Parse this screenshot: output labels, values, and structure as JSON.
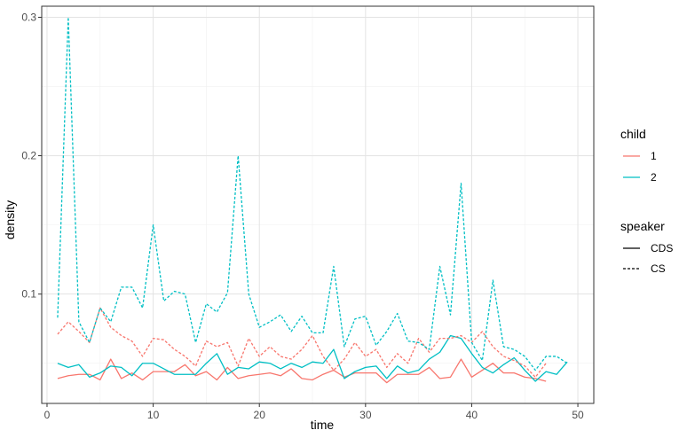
{
  "chart_data": {
    "type": "line",
    "xlabel": "time",
    "ylabel": "density",
    "xlim": [
      -0.5,
      51.5
    ],
    "ylim": [
      0.021,
      0.308
    ],
    "xticks": [
      0,
      10,
      20,
      30,
      40,
      50
    ],
    "yticks": [
      0.1,
      0.2,
      0.3
    ],
    "grid": true,
    "legend_position": "right",
    "legends": [
      {
        "title": "child",
        "entries": [
          {
            "label": "1",
            "color": "#F8766D"
          },
          {
            "label": "2",
            "color": "#00BFC4"
          }
        ]
      },
      {
        "title": "speaker",
        "entries": [
          {
            "label": "CDS",
            "linetype": "solid"
          },
          {
            "label": "CS",
            "linetype": "dashed"
          }
        ]
      }
    ],
    "series": [
      {
        "child": "1",
        "speaker": "CDS",
        "color": "#F8766D",
        "linetype": "solid",
        "x": [
          1,
          2,
          3,
          4,
          5,
          6,
          7,
          8,
          9,
          10,
          11,
          12,
          13,
          14,
          15,
          16,
          17,
          18,
          19,
          20,
          21,
          22,
          23,
          24,
          25,
          26,
          27,
          28,
          29,
          30,
          31,
          32,
          33,
          34,
          35,
          36,
          37,
          38,
          39,
          40,
          41,
          42,
          43,
          44,
          45,
          46,
          47
        ],
        "y": [
          0.039,
          0.041,
          0.042,
          0.042,
          0.038,
          0.053,
          0.039,
          0.043,
          0.038,
          0.044,
          0.044,
          0.044,
          0.049,
          0.041,
          0.044,
          0.038,
          0.047,
          0.039,
          0.041,
          0.042,
          0.043,
          0.041,
          0.046,
          0.039,
          0.038,
          0.042,
          0.045,
          0.04,
          0.043,
          0.043,
          0.043,
          0.036,
          0.042,
          0.042,
          0.042,
          0.047,
          0.039,
          0.04,
          0.053,
          0.04,
          0.045,
          0.05,
          0.043,
          0.043,
          0.04,
          0.039,
          0.037
        ]
      },
      {
        "child": "2",
        "speaker": "CDS",
        "color": "#00BFC4",
        "linetype": "solid",
        "x": [
          1,
          2,
          3,
          4,
          5,
          6,
          7,
          8,
          9,
          10,
          11,
          12,
          13,
          14,
          15,
          16,
          17,
          18,
          19,
          20,
          21,
          22,
          23,
          24,
          25,
          26,
          27,
          28,
          29,
          30,
          31,
          32,
          33,
          34,
          35,
          36,
          37,
          38,
          39,
          40,
          41,
          42,
          43,
          44,
          45,
          46,
          47,
          48,
          49
        ],
        "y": [
          0.05,
          0.047,
          0.049,
          0.04,
          0.043,
          0.048,
          0.047,
          0.041,
          0.05,
          0.05,
          0.046,
          0.042,
          0.042,
          0.042,
          0.05,
          0.057,
          0.042,
          0.047,
          0.046,
          0.051,
          0.05,
          0.046,
          0.05,
          0.047,
          0.051,
          0.05,
          0.06,
          0.039,
          0.044,
          0.047,
          0.048,
          0.039,
          0.048,
          0.043,
          0.045,
          0.053,
          0.058,
          0.07,
          0.068,
          0.057,
          0.047,
          0.043,
          0.049,
          0.054,
          0.045,
          0.037,
          0.044,
          0.042,
          0.051
        ]
      },
      {
        "child": "1",
        "speaker": "CS",
        "color": "#F8766D",
        "linetype": "dashed",
        "x": [
          1,
          2,
          3,
          4,
          5,
          6,
          7,
          8,
          9,
          10,
          11,
          12,
          13,
          14,
          15,
          16,
          17,
          18,
          19,
          20,
          21,
          22,
          23,
          24,
          25,
          26,
          27,
          28,
          29,
          30,
          31,
          32,
          33,
          34,
          35,
          36,
          37,
          38,
          39,
          40,
          41,
          42,
          43,
          44,
          45,
          46,
          47
        ],
        "y": [
          0.071,
          0.08,
          0.073,
          0.065,
          0.09,
          0.076,
          0.07,
          0.066,
          0.055,
          0.068,
          0.067,
          0.06,
          0.055,
          0.048,
          0.066,
          0.062,
          0.065,
          0.048,
          0.068,
          0.055,
          0.062,
          0.055,
          0.053,
          0.06,
          0.07,
          0.055,
          0.045,
          0.053,
          0.065,
          0.055,
          0.06,
          0.047,
          0.057,
          0.05,
          0.068,
          0.058,
          0.068,
          0.068,
          0.07,
          0.065,
          0.073,
          0.062,
          0.055,
          0.052,
          0.048,
          0.04,
          0.05
        ]
      },
      {
        "child": "2",
        "speaker": "CS",
        "color": "#00BFC4",
        "linetype": "dashed",
        "x": [
          1,
          2,
          3,
          4,
          5,
          6,
          7,
          8,
          9,
          10,
          11,
          12,
          13,
          14,
          15,
          16,
          17,
          18,
          19,
          20,
          21,
          22,
          23,
          24,
          25,
          26,
          27,
          28,
          29,
          30,
          31,
          32,
          33,
          34,
          35,
          36,
          37,
          38,
          39,
          40,
          41,
          42,
          43,
          44,
          45,
          46,
          47,
          48,
          49
        ],
        "y": [
          0.083,
          0.3,
          0.08,
          0.065,
          0.09,
          0.08,
          0.105,
          0.105,
          0.09,
          0.15,
          0.095,
          0.102,
          0.1,
          0.065,
          0.093,
          0.087,
          0.101,
          0.2,
          0.1,
          0.076,
          0.08,
          0.085,
          0.073,
          0.084,
          0.072,
          0.072,
          0.12,
          0.062,
          0.082,
          0.084,
          0.063,
          0.073,
          0.086,
          0.066,
          0.065,
          0.06,
          0.12,
          0.085,
          0.18,
          0.065,
          0.052,
          0.11,
          0.062,
          0.06,
          0.055,
          0.045,
          0.055,
          0.055,
          0.05
        ]
      }
    ]
  }
}
